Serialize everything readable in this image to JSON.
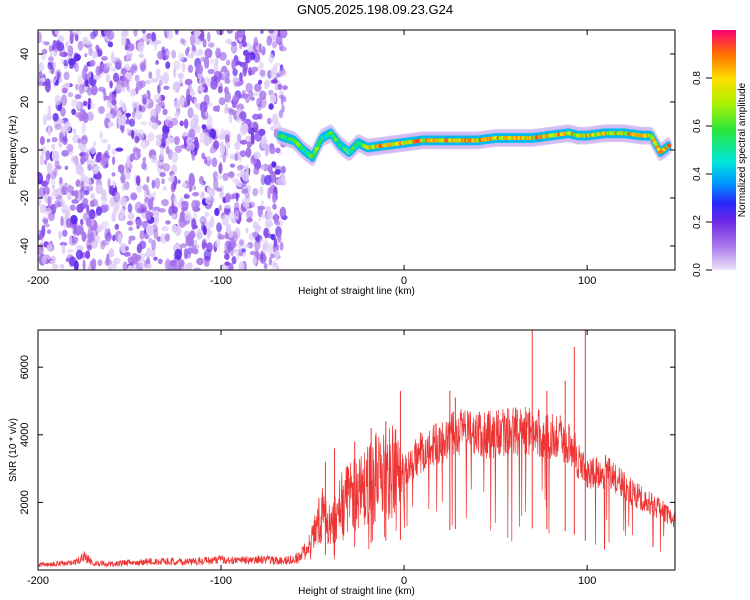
{
  "title": "GN05.2025.198.09.23.G24",
  "chart_data": [
    {
      "type": "heatmap",
      "xlabel": "Height of straight line (km)",
      "ylabel": "Frequency (Hz)",
      "xlim": [
        -200,
        148
      ],
      "ylim": [
        -50,
        50
      ],
      "xticks": [
        -200,
        -100,
        0,
        100
      ],
      "yticks": [
        -40,
        -20,
        0,
        20,
        40
      ],
      "colorbar": {
        "label": "Normalized spectral amplitude",
        "range": [
          0,
          1
        ],
        "ticks": [
          "0.0",
          "0.2",
          "0.4",
          "0.6",
          "0.8"
        ]
      },
      "regions": [
        {
          "name": "noise",
          "x_range": [
            -200,
            -65
          ],
          "freq_range": [
            -50,
            50
          ],
          "amplitude_level": 0.12
        },
        {
          "name": "tone",
          "x_range": [
            -65,
            148
          ],
          "amplitude_level": 0.95
        }
      ],
      "tone_track": {
        "x": [
          -68,
          -60,
          -55,
          -50,
          -45,
          -40,
          -35,
          -30,
          -25,
          -20,
          -10,
          0,
          10,
          20,
          30,
          40,
          50,
          60,
          70,
          80,
          90,
          95,
          100,
          110,
          120,
          130,
          135,
          140,
          145
        ],
        "freq": [
          6,
          4,
          0,
          -3,
          5,
          7,
          2,
          -1,
          3,
          1,
          2,
          3,
          4,
          4,
          4,
          4,
          5,
          5,
          5,
          6,
          7,
          6,
          6,
          7,
          7,
          6,
          6,
          -1,
          2
        ]
      }
    },
    {
      "type": "line",
      "xlabel": "Height of straight line (km)",
      "ylabel": "SNR (10 * v/v)",
      "xlim": [
        -200,
        148
      ],
      "ylim": [
        0,
        7100
      ],
      "xticks": [
        -200,
        -100,
        0,
        100
      ],
      "yticks": [
        2000,
        4000,
        6000
      ],
      "color": "#ee3333",
      "x": [
        -200,
        -190,
        -180,
        -175,
        -170,
        -160,
        -150,
        -140,
        -130,
        -120,
        -110,
        -100,
        -90,
        -80,
        -70,
        -60,
        -55,
        -50,
        -45,
        -40,
        -35,
        -30,
        -25,
        -20,
        -10,
        0,
        10,
        20,
        30,
        40,
        50,
        60,
        70,
        80,
        90,
        95,
        100,
        110,
        120,
        130,
        140,
        148
      ],
      "snr": [
        150,
        180,
        220,
        420,
        200,
        180,
        220,
        250,
        260,
        230,
        270,
        300,
        280,
        300,
        280,
        300,
        500,
        900,
        1700,
        1200,
        1900,
        2100,
        2400,
        2600,
        2900,
        3000,
        3500,
        3800,
        4100,
        4000,
        4000,
        4100,
        4100,
        4000,
        3800,
        3300,
        2800,
        2900,
        2500,
        2100,
        1800,
        1500
      ],
      "spikes": [
        {
          "x": -43,
          "snr": 3200
        },
        {
          "x": -38,
          "snr": 3600
        },
        {
          "x": -27,
          "snr": 3800
        },
        {
          "x": -18,
          "snr": 4200
        },
        {
          "x": -10,
          "snr": 4400
        },
        {
          "x": -2,
          "snr": 5300
        },
        {
          "x": 25,
          "snr": 5300
        },
        {
          "x": 28,
          "snr": 5100
        },
        {
          "x": 70,
          "snr": 7100
        },
        {
          "x": 78,
          "snr": 5300
        },
        {
          "x": 88,
          "snr": 5600
        },
        {
          "x": 93,
          "snr": 6600
        },
        {
          "x": 99,
          "snr": 7100
        }
      ]
    }
  ]
}
